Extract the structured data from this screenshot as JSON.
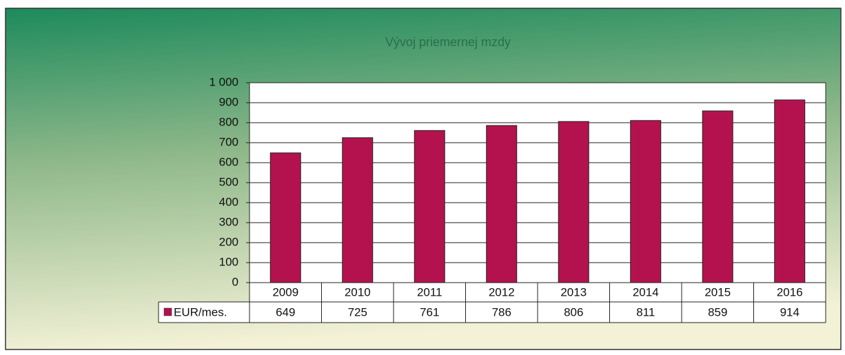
{
  "chart_data": {
    "type": "bar",
    "title": "Vývoj priemernej mzdy",
    "categories": [
      "2009",
      "2010",
      "2011",
      "2012",
      "2013",
      "2014",
      "2015",
      "2016"
    ],
    "series": [
      {
        "name": "EUR/mes.",
        "color": "#b3124f",
        "values": [
          649,
          725,
          761,
          786,
          806,
          811,
          859,
          914
        ]
      }
    ],
    "ylim": [
      0,
      1000
    ],
    "yticks": [
      0,
      100,
      200,
      300,
      400,
      500,
      600,
      700,
      800,
      900,
      {
        "value": 1000,
        "label": "1 000"
      }
    ],
    "grid": true
  }
}
